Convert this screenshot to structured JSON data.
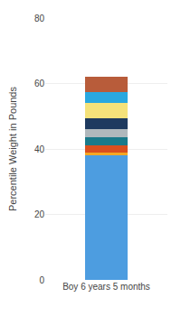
{
  "chart_data": {
    "type": "bar",
    "ylabel": "Percentile Weight in Pounds",
    "categories": [
      "Boy 6 years 5 months"
    ],
    "series": [
      {
        "color": "#4d9de0",
        "values": [
          38.0
        ]
      },
      {
        "color": "#f5a623",
        "values": [
          1.0
        ]
      },
      {
        "color": "#d94f1e",
        "values": [
          2.0
        ]
      },
      {
        "color": "#1a7a8a",
        "values": [
          2.5
        ]
      },
      {
        "color": "#b0b8bc",
        "values": [
          2.5
        ]
      },
      {
        "color": "#1e3a5f",
        "values": [
          3.5
        ]
      },
      {
        "color": "#f5e27a",
        "values": [
          4.5
        ]
      },
      {
        "color": "#29a8e0",
        "values": [
          3.5
        ]
      },
      {
        "color": "#b85c3a",
        "values": [
          4.5
        ]
      }
    ],
    "stacked": true,
    "ylim": [
      0,
      80
    ],
    "yticks": [
      0,
      20,
      40,
      60,
      80
    ],
    "grid": true
  }
}
